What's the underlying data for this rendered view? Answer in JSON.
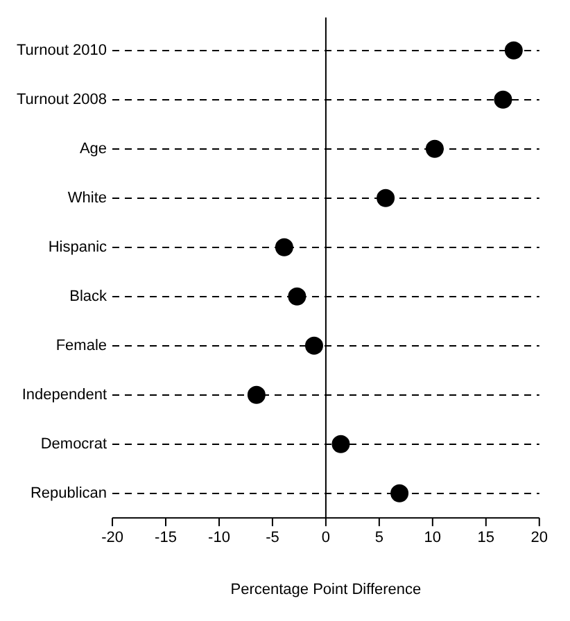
{
  "chart_data": {
    "type": "scatter",
    "orientation": "horizontal",
    "xlabel": "Percentage Point Difference",
    "categories": [
      "Turnout 2010",
      "Turnout 2008",
      "Age",
      "White",
      "Hispanic",
      "Black",
      "Female",
      "Independent",
      "Democrat",
      "Republican"
    ],
    "series": [
      {
        "color": "#000000",
        "values": [
          17.6,
          16.6,
          10.2,
          5.6,
          -3.9,
          -2.7,
          -1.1,
          -6.5,
          1.4,
          6.9
        ]
      }
    ],
    "xlim": [
      -20,
      20
    ],
    "xticks": [
      -20,
      -15,
      -10,
      -5,
      0,
      5,
      10,
      15,
      20
    ],
    "ref_lines": [
      {
        "axis": "x",
        "value": 0,
        "color": "#000000"
      }
    ],
    "grid": "y",
    "marker": "circle",
    "legend": false
  }
}
